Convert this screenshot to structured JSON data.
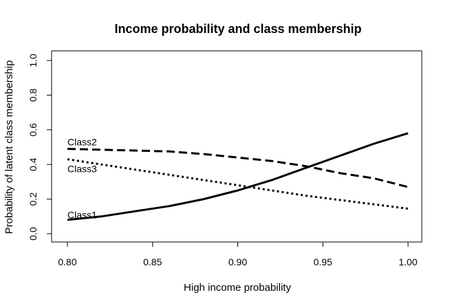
{
  "chart_data": {
    "type": "line",
    "title": "Income probability and class membership",
    "xlabel": "High income probability",
    "ylabel": "Probability of latent class membership",
    "xlim": [
      0.8,
      1.0
    ],
    "ylim": [
      0.0,
      1.0
    ],
    "x_ticks": [
      "0.80",
      "0.85",
      "0.90",
      "0.95",
      "1.00"
    ],
    "y_ticks": [
      "0.0",
      "0.2",
      "0.4",
      "0.6",
      "0.8",
      "1.0"
    ],
    "grid": false,
    "legend": "none",
    "x": [
      0.8,
      0.82,
      0.84,
      0.86,
      0.88,
      0.9,
      0.92,
      0.94,
      0.96,
      0.98,
      1.0
    ],
    "series": [
      {
        "name": "Class1",
        "style": "solid",
        "label_at": [
          0.8,
          0.11
        ],
        "values": [
          0.08,
          0.1,
          0.13,
          0.16,
          0.2,
          0.25,
          0.31,
          0.38,
          0.45,
          0.52,
          0.58
        ]
      },
      {
        "name": "Class2",
        "style": "dashed",
        "label_at": [
          0.8,
          0.53
        ],
        "values": [
          0.49,
          0.485,
          0.48,
          0.475,
          0.46,
          0.44,
          0.42,
          0.39,
          0.35,
          0.32,
          0.27
        ]
      },
      {
        "name": "Class3",
        "style": "dotted",
        "label_at": [
          0.8,
          0.375
        ],
        "values": [
          0.43,
          0.4,
          0.37,
          0.34,
          0.31,
          0.28,
          0.25,
          0.22,
          0.195,
          0.17,
          0.145
        ]
      }
    ]
  }
}
